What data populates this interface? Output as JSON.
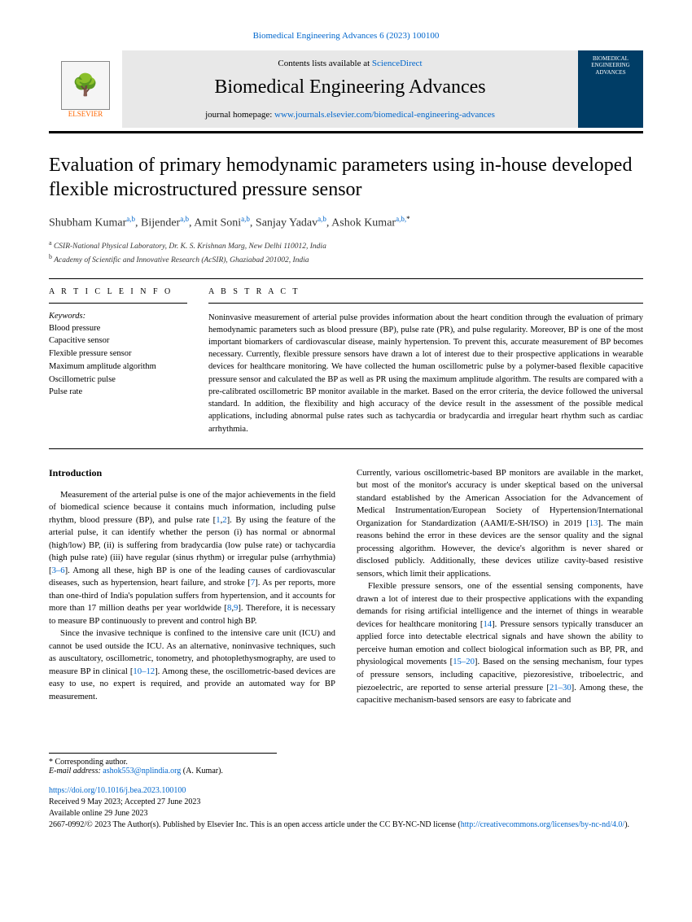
{
  "citation": "Biomedical Engineering Advances 6 (2023) 100100",
  "header": {
    "contents_prefix": "Contents lists available at ",
    "contents_link": "ScienceDirect",
    "journal": "Biomedical Engineering Advances",
    "homepage_prefix": "journal homepage: ",
    "homepage_url": "www.journals.elsevier.com/biomedical-engineering-advances",
    "publisher_label": "ELSEVIER",
    "cover_text": "BIOMEDICAL ENGINEERING ADVANCES"
  },
  "title": "Evaluation of primary hemodynamic parameters using in-house developed flexible microstructured pressure sensor",
  "authors": [
    {
      "name": "Shubham Kumar",
      "aff": "a,b"
    },
    {
      "name": "Bijender",
      "aff": "a,b"
    },
    {
      "name": "Amit Soni",
      "aff": "a,b"
    },
    {
      "name": "Sanjay Yadav",
      "aff": "a,b"
    },
    {
      "name": "Ashok Kumar",
      "aff": "a,b,",
      "star": "*"
    }
  ],
  "affiliations": {
    "a": "CSIR-National Physical Laboratory, Dr. K. S. Krishnan Marg, New Delhi 110012, India",
    "b": "Academy of Scientific and Innovative Research (AcSIR), Ghaziabad 201002, India"
  },
  "info_head": "A R T I C L E  I N F O",
  "abstract_head": "A B S T R A C T",
  "keywords_label": "Keywords:",
  "keywords": [
    "Blood pressure",
    "Capacitive sensor",
    "Flexible pressure sensor",
    "Maximum amplitude algorithm",
    "Oscillometric pulse",
    "Pulse rate"
  ],
  "abstract": "Noninvasive measurement of arterial pulse provides information about the heart condition through the evaluation of primary hemodynamic parameters such as blood pressure (BP), pulse rate (PR), and pulse regularity. Moreover, BP is one of the most important biomarkers of cardiovascular disease, mainly hypertension. To prevent this, accurate measurement of BP becomes necessary. Currently, flexible pressure sensors have drawn a lot of interest due to their prospective applications in wearable devices for healthcare monitoring. We have collected the human oscillometric pulse by a polymer-based flexible capacitive pressure sensor and calculated the BP as well as PR using the maximum amplitude algorithm. The results are compared with a pre-calibrated oscillometric BP monitor available in the market. Based on the error criteria, the device followed the universal standard. In addition, the flexibility and high accuracy of the device result in the assessment of the possible medical applications, including abnormal pulse rates such as tachycardia or bradycardia and irregular heart rhythm such as cardiac arrhythmia.",
  "intro_head": "Introduction",
  "col1": {
    "p1a": "Measurement of the arterial pulse is one of the major achievements in the field of biomedical science because it contains much information, including pulse rhythm, blood pressure (BP), and pulse rate [",
    "r1": "1",
    "r1c": ",",
    "r2": "2",
    "p1b": "]. By using the feature of the arterial pulse, it can identify whether the person (i) has normal or abnormal (high/low) BP, (ii) is suffering from bradycardia (low pulse rate) or tachycardia (high pulse rate) (iii) have regular (sinus rhythm) or irregular pulse (arrhythmia) [",
    "r3": "3–6",
    "p1c": "]. Among all these, high BP is one of the leading causes of cardiovascular diseases, such as hypertension, heart failure, and stroke [",
    "r7": "7",
    "p1d": "]. As per reports, more than one-third of India's population suffers from hypertension, and it accounts for more than 17 million deaths per year worldwide [",
    "r8": "8",
    "r8c": ",",
    "r9": "9",
    "p1e": "]. Therefore, it is necessary to measure BP continuously to prevent and control high BP.",
    "p2a": "Since the invasive technique is confined to the intensive care unit (ICU) and cannot be used outside the ICU. As an alternative, noninvasive techniques, such as auscultatory, oscillometric, tonometry, and photoplethysmography, are used to measure BP in clinical [",
    "r10": "10–12",
    "p2b": "]. Among these, the oscillometric-based devices are easy to use, no expert is required, and provide an automated way for BP measurement. "
  },
  "col2": {
    "p1a": "Currently, various oscillometric-based BP monitors are available in the market, but most of the monitor's accuracy is under skeptical based on the universal standard established by the American Association for the Advancement of Medical Instrumentation/European Society of Hypertension/International Organization for Standardization (AAMI/E-SH/ISO) in 2019 [",
    "r13": "13",
    "p1b": "]. The main reasons behind the error in these devices are the sensor quality and the signal processing algorithm. However, the device's algorithm is never shared or disclosed publicly. Additionally, these devices utilize cavity-based resistive sensors, which limit their applications.",
    "p2a": "Flexible pressure sensors, one of the essential sensing components, have drawn a lot of interest due to their prospective applications with the expanding demands for rising artificial intelligence and the internet of things in wearable devices for healthcare monitoring [",
    "r14": "14",
    "p2b": "]. Pressure sensors typically transducer an applied force into detectable electrical signals and have shown the ability to perceive human emotion and collect biological information such as BP, PR, and physiological movements [",
    "r15": "15–20",
    "p2c": "]. Based on the sensing mechanism, four types of pressure sensors, including capacitive, piezoresistive, triboelectric, and piezoelectric, are reported to sense arterial pressure [",
    "r21": "21–30",
    "p2d": "]. Among these, the capacitive mechanism-based sensors are easy to fabricate and "
  },
  "footer": {
    "corresp": "* Corresponding author.",
    "email_label": "E-mail address: ",
    "email": "ashok553@nplindia.org",
    "email_name": " (A. Kumar)."
  },
  "bottom": {
    "doi": "https://doi.org/10.1016/j.bea.2023.100100",
    "dates": "Received 9 May 2023; Accepted 27 June 2023",
    "online": "Available online 29 June 2023",
    "copyright_a": "2667-0992/© 2023 The Author(s). Published by Elsevier Inc. This is an open access article under the CC BY-NC-ND license (",
    "license_url": "http://creativecommons.org/licenses/by-nc-nd/4.0/",
    "copyright_b": ")."
  }
}
